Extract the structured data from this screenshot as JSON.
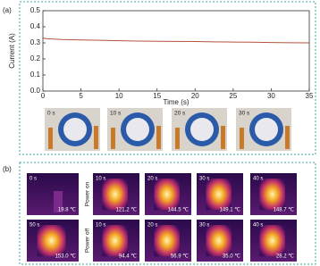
{
  "chart_data": {
    "type": "line",
    "xlabel": "Time (s)",
    "ylabel": "Current (A)",
    "color": "#b5523a",
    "x": [
      0,
      0.5,
      2.5,
      5,
      7.5,
      10,
      12.5,
      15,
      17.5,
      20,
      22.5,
      25,
      27.5,
      30,
      32.5,
      35
    ],
    "values": [
      0.33,
      0.326,
      0.321,
      0.318,
      0.316,
      0.313,
      0.311,
      0.31,
      0.309,
      0.308,
      0.306,
      0.305,
      0.304,
      0.302,
      0.301,
      0.3
    ],
    "xlim": [
      0,
      35
    ],
    "xticks": [
      0,
      5,
      10,
      15,
      20,
      25,
      30,
      35
    ],
    "ylim": [
      0,
      0.5
    ],
    "yticks": [
      {
        "value": 0,
        "label": "0.0"
      },
      0.1,
      0.2,
      0.3,
      0.4,
      0.5
    ]
  },
  "panel_labels": [
    "(a)",
    "(b)"
  ],
  "photos": [
    "0 s",
    "10 s",
    "20 s",
    "30 s"
  ],
  "thermal": {
    "side_labels": [
      "Power on",
      "Power off"
    ],
    "rows": [
      [
        {
          "time": "0 s",
          "temp": "19.8 ℃"
        },
        {
          "time": "10 s",
          "temp": "121.2 ℃"
        },
        {
          "time": "20 s",
          "temp": "144.5 ℃"
        },
        {
          "time": "30 s",
          "temp": "149.1 ℃"
        },
        {
          "time": "40 s",
          "temp": "148.7 ℃"
        }
      ],
      [
        {
          "time": "50 s",
          "temp": "153.0 ℃"
        },
        {
          "time": "10 s",
          "temp": "94.4 ℃"
        },
        {
          "time": "20 s",
          "temp": "56.9 ℃"
        },
        {
          "time": "30 s",
          "temp": "35.0 ℃"
        },
        {
          "time": "40 s",
          "temp": "28.2 ℃"
        }
      ]
    ]
  }
}
